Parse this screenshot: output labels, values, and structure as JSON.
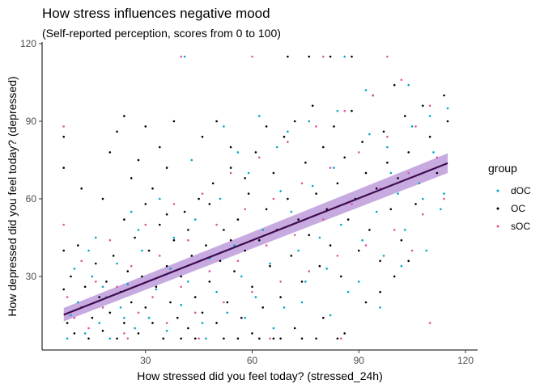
{
  "chart_data": {
    "type": "scatter",
    "title": "How stress influences negative mood",
    "subtitle": "(Self-reported perception, scores from 0 to 100)",
    "xlabel": "How stressed did you feel today? (stressed_24h)",
    "ylabel": "How depressed did you feel today? (depressed)",
    "xlim": [
      0,
      120
    ],
    "ylim": [
      0,
      120
    ],
    "xticks": [
      30,
      60,
      90,
      120
    ],
    "yticks": [
      30,
      60,
      90,
      120
    ],
    "grid": false,
    "legend": {
      "title": "group",
      "position": "right",
      "entries": [
        {
          "label": "dOC",
          "color": "#00a5c6"
        },
        {
          "label": "OC",
          "color": "#000000"
        },
        {
          "label": "sOC",
          "color": "#e0529c"
        }
      ]
    },
    "fit": {
      "method": "linear",
      "color": "#3d0a4f",
      "ribbon_color": "#b48fd6",
      "x": [
        7,
        115
      ],
      "y": [
        15.2,
        73.8
      ],
      "ci_lower": [
        12.6,
        70.0
      ],
      "ci_upper": [
        17.8,
        77.6
      ]
    },
    "series": [
      {
        "name": "dOC",
        "color": "#00a5c6",
        "points": [
          [
            8,
            6
          ],
          [
            9,
            15
          ],
          [
            11,
            20
          ],
          [
            13,
            8
          ],
          [
            15,
            30
          ],
          [
            17,
            12
          ],
          [
            19,
            22
          ],
          [
            20,
            6
          ],
          [
            22,
            35
          ],
          [
            23,
            18
          ],
          [
            25,
            27
          ],
          [
            27,
            10
          ],
          [
            29,
            40
          ],
          [
            31,
            14
          ],
          [
            33,
            25
          ],
          [
            35,
            6
          ],
          [
            37,
            33
          ],
          [
            38,
            45
          ],
          [
            40,
            19
          ],
          [
            42,
            28
          ],
          [
            44,
            52
          ],
          [
            46,
            12
          ],
          [
            48,
            37
          ],
          [
            50,
            24
          ],
          [
            51,
            60
          ],
          [
            53,
            16
          ],
          [
            55,
            42
          ],
          [
            57,
            30
          ],
          [
            59,
            70
          ],
          [
            61,
            22
          ],
          [
            63,
            48
          ],
          [
            65,
            35
          ],
          [
            67,
            80
          ],
          [
            69,
            18
          ],
          [
            71,
            55
          ],
          [
            73,
            40
          ],
          [
            75,
            28
          ],
          [
            77,
            65
          ],
          [
            79,
            45
          ],
          [
            81,
            33
          ],
          [
            83,
            72
          ],
          [
            85,
            50
          ],
          [
            87,
            24
          ],
          [
            89,
            60
          ],
          [
            91,
            44
          ],
          [
            93,
            85
          ],
          [
            95,
            55
          ],
          [
            97,
            38
          ],
          [
            99,
            70
          ],
          [
            101,
            62
          ],
          [
            103,
            48
          ],
          [
            105,
            88
          ],
          [
            107,
            66
          ],
          [
            109,
            40
          ],
          [
            111,
            78
          ],
          [
            113,
            56
          ],
          [
            115,
            95
          ],
          [
            10,
            33
          ],
          [
            14,
            40
          ],
          [
            18,
            26
          ],
          [
            26,
            55
          ],
          [
            34,
            60
          ],
          [
            43,
            75
          ],
          [
            52,
            88
          ],
          [
            62,
            92
          ],
          [
            68,
            63
          ],
          [
            76,
            90
          ],
          [
            86,
            115
          ],
          [
            92,
            102
          ],
          [
            98,
            80
          ],
          [
            104,
            104
          ],
          [
            110,
            92
          ],
          [
            114,
            62
          ],
          [
            24,
            14
          ],
          [
            36,
            9
          ],
          [
            47,
            6
          ],
          [
            58,
            14
          ],
          [
            66,
            10
          ],
          [
            74,
            20
          ],
          [
            82,
            15
          ],
          [
            90,
            28
          ],
          [
            96,
            18
          ],
          [
            102,
            34
          ],
          [
            108,
            60
          ],
          [
            16,
            45
          ],
          [
            28,
            48
          ],
          [
            41,
            115
          ],
          [
            56,
            78
          ],
          [
            70,
            86
          ],
          [
            84,
            94
          ]
        ]
      },
      {
        "name": "OC",
        "color": "#000000",
        "points": [
          [
            7,
            84
          ],
          [
            7,
            72
          ],
          [
            7,
            40
          ],
          [
            7,
            25
          ],
          [
            8,
            12
          ],
          [
            9,
            30
          ],
          [
            10,
            8
          ],
          [
            11,
            42
          ],
          [
            12,
            18
          ],
          [
            13,
            26
          ],
          [
            14,
            6
          ],
          [
            15,
            14
          ],
          [
            16,
            35
          ],
          [
            17,
            22
          ],
          [
            18,
            9
          ],
          [
            19,
            28
          ],
          [
            20,
            16
          ],
          [
            21,
            38
          ],
          [
            22,
            6
          ],
          [
            23,
            24
          ],
          [
            24,
            12
          ],
          [
            25,
            32
          ],
          [
            26,
            20
          ],
          [
            27,
            45
          ],
          [
            28,
            8
          ],
          [
            29,
            30
          ],
          [
            30,
            18
          ],
          [
            31,
            40
          ],
          [
            32,
            12
          ],
          [
            33,
            26
          ],
          [
            34,
            50
          ],
          [
            35,
            6
          ],
          [
            36,
            34
          ],
          [
            37,
            20
          ],
          [
            38,
            44
          ],
          [
            39,
            14
          ],
          [
            40,
            30
          ],
          [
            41,
            55
          ],
          [
            42,
            10
          ],
          [
            43,
            38
          ],
          [
            44,
            22
          ],
          [
            45,
            60
          ],
          [
            46,
            16
          ],
          [
            47,
            42
          ],
          [
            48,
            28
          ],
          [
            49,
            66
          ],
          [
            50,
            12
          ],
          [
            51,
            36
          ],
          [
            52,
            48
          ],
          [
            53,
            20
          ],
          [
            54,
            72
          ],
          [
            55,
            32
          ],
          [
            56,
            52
          ],
          [
            57,
            14
          ],
          [
            58,
            40
          ],
          [
            59,
            62
          ],
          [
            60,
            26
          ],
          [
            61,
            78
          ],
          [
            62,
            44
          ],
          [
            63,
            18
          ],
          [
            64,
            56
          ],
          [
            65,
            34
          ],
          [
            66,
            70
          ],
          [
            67,
            48
          ],
          [
            68,
            22
          ],
          [
            69,
            84
          ],
          [
            70,
            60
          ],
          [
            71,
            38
          ],
          [
            72,
            90
          ],
          [
            73,
            52
          ],
          [
            74,
            28
          ],
          [
            75,
            74
          ],
          [
            76,
            46
          ],
          [
            77,
            96
          ],
          [
            78,
            62
          ],
          [
            79,
            34
          ],
          [
            80,
            80
          ],
          [
            81,
            56
          ],
          [
            82,
            42
          ],
          [
            83,
            88
          ],
          [
            84,
            66
          ],
          [
            85,
            30
          ],
          [
            86,
            76
          ],
          [
            87,
            52
          ],
          [
            88,
            94
          ],
          [
            89,
            60
          ],
          [
            90,
            40
          ],
          [
            91,
            82
          ],
          [
            92,
            70
          ],
          [
            93,
            48
          ],
          [
            94,
            100
          ],
          [
            95,
            64
          ],
          [
            96,
            36
          ],
          [
            97,
            86
          ],
          [
            98,
            74
          ],
          [
            99,
            56
          ],
          [
            100,
            104
          ],
          [
            101,
            68
          ],
          [
            102,
            44
          ],
          [
            103,
            92
          ],
          [
            104,
            78
          ],
          [
            106,
            58
          ],
          [
            108,
            96
          ],
          [
            110,
            84
          ],
          [
            112,
            70
          ],
          [
            114,
            100
          ],
          [
            115,
            90
          ],
          [
            20,
            78
          ],
          [
            22,
            86
          ],
          [
            24,
            92
          ],
          [
            26,
            68
          ],
          [
            28,
            75
          ],
          [
            30,
            88
          ],
          [
            32,
            64
          ],
          [
            34,
            80
          ],
          [
            36,
            72
          ],
          [
            38,
            90
          ],
          [
            46,
            84
          ],
          [
            50,
            90
          ],
          [
            54,
            80
          ],
          [
            58,
            68
          ],
          [
            64,
            88
          ],
          [
            70,
            115
          ],
          [
            76,
            115
          ],
          [
            82,
            115
          ],
          [
            88,
            115
          ],
          [
            66,
            6
          ],
          [
            72,
            10
          ],
          [
            80,
            14
          ],
          [
            86,
            8
          ],
          [
            92,
            20
          ],
          [
            96,
            24
          ],
          [
            100,
            30
          ],
          [
            104,
            36
          ],
          [
            18,
            60
          ],
          [
            12,
            64
          ],
          [
            24,
            52
          ],
          [
            30,
            58
          ],
          [
            36,
            54
          ],
          [
            42,
            48
          ],
          [
            48,
            58
          ],
          [
            54,
            44
          ],
          [
            60,
            8
          ],
          [
            40,
            6
          ],
          [
            44,
            6
          ],
          [
            52,
            6
          ],
          [
            56,
            6
          ],
          [
            62,
            6
          ],
          [
            68,
            6
          ],
          [
            74,
            6
          ],
          [
            78,
            6
          ],
          [
            84,
            6
          ]
        ]
      },
      {
        "name": "sOC",
        "color": "#e0529c",
        "points": [
          [
            7,
            88
          ],
          [
            7,
            50
          ],
          [
            8,
            22
          ],
          [
            10,
            14
          ],
          [
            12,
            36
          ],
          [
            14,
            10
          ],
          [
            16,
            28
          ],
          [
            18,
            18
          ],
          [
            20,
            44
          ],
          [
            22,
            26
          ],
          [
            24,
            8
          ],
          [
            26,
            34
          ],
          [
            28,
            16
          ],
          [
            30,
            50
          ],
          [
            32,
            22
          ],
          [
            34,
            38
          ],
          [
            36,
            12
          ],
          [
            38,
            58
          ],
          [
            40,
            26
          ],
          [
            42,
            44
          ],
          [
            44,
            16
          ],
          [
            46,
            62
          ],
          [
            48,
            32
          ],
          [
            50,
            50
          ],
          [
            52,
            20
          ],
          [
            54,
            70
          ],
          [
            56,
            36
          ],
          [
            58,
            56
          ],
          [
            60,
            24
          ],
          [
            62,
            76
          ],
          [
            64,
            42
          ],
          [
            66,
            60
          ],
          [
            68,
            28
          ],
          [
            70,
            82
          ],
          [
            72,
            46
          ],
          [
            74,
            66
          ],
          [
            76,
            32
          ],
          [
            78,
            88
          ],
          [
            80,
            52
          ],
          [
            82,
            72
          ],
          [
            84,
            38
          ],
          [
            86,
            94
          ],
          [
            88,
            58
          ],
          [
            90,
            78
          ],
          [
            92,
            42
          ],
          [
            94,
            100
          ],
          [
            96,
            64
          ],
          [
            98,
            84
          ],
          [
            100,
            48
          ],
          [
            102,
            106
          ],
          [
            104,
            70
          ],
          [
            106,
            88
          ],
          [
            108,
            54
          ],
          [
            110,
            96
          ],
          [
            112,
            76
          ],
          [
            114,
            60
          ],
          [
            40,
            115
          ],
          [
            60,
            115
          ],
          [
            80,
            115
          ],
          [
            98,
            115
          ],
          [
            105,
            40
          ],
          [
            110,
            12
          ],
          [
            25,
            6
          ],
          [
            45,
            6
          ],
          [
            65,
            6
          ],
          [
            85,
            6
          ]
        ]
      }
    ]
  }
}
